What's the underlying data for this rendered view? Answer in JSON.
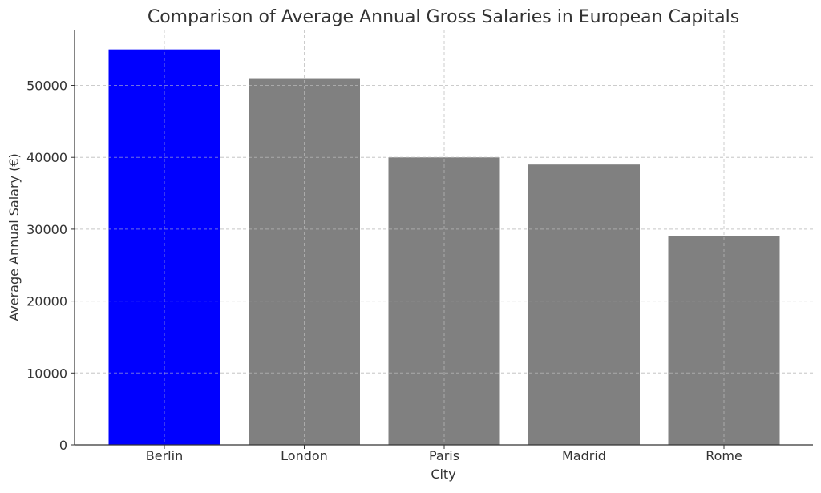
{
  "chart_data": {
    "type": "bar",
    "title": "Comparison of Average Annual Gross Salaries in European Capitals",
    "xlabel": "City",
    "ylabel": "Average Annual Salary (€)",
    "categories": [
      "Berlin",
      "London",
      "Paris",
      "Madrid",
      "Rome"
    ],
    "values": [
      55000,
      51000,
      40000,
      39000,
      29000
    ],
    "bar_colors": [
      "#0000ff",
      "#808080",
      "#808080",
      "#808080",
      "#808080"
    ],
    "ylim": [
      0,
      57750
    ],
    "yticks": [
      0,
      10000,
      20000,
      30000,
      40000,
      50000
    ],
    "grid": true
  }
}
